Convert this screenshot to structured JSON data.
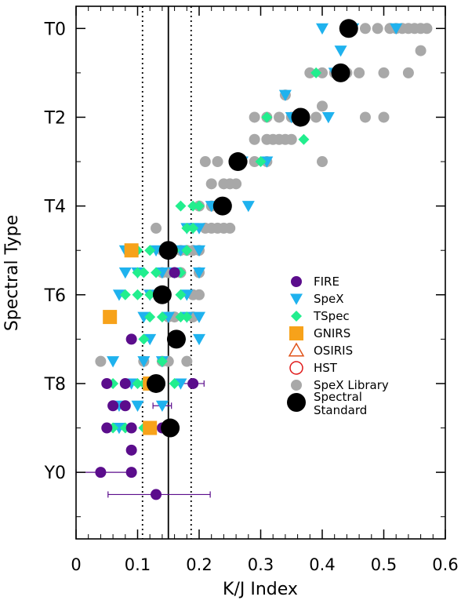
{
  "chart_data": {
    "type": "scatter",
    "title": "",
    "xlabel": "K/J Index",
    "ylabel": "Spectral Type",
    "xlim": [
      0,
      0.6
    ],
    "ylim_spectral_index": [
      -0.5,
      11.5
    ],
    "y_axis_direction": "T0 at top, increasing downward",
    "x_ticks": [
      {
        "v": 0,
        "label": "0"
      },
      {
        "v": 0.1,
        "label": "0.1"
      },
      {
        "v": 0.2,
        "label": "0.2"
      },
      {
        "v": 0.3,
        "label": "0.3"
      },
      {
        "v": 0.4,
        "label": "0.4"
      },
      {
        "v": 0.5,
        "label": "0.5"
      },
      {
        "v": 0.6,
        "label": "0.6"
      }
    ],
    "y_ticks": [
      {
        "v": 0,
        "label": "T0"
      },
      {
        "v": 2,
        "label": "T2"
      },
      {
        "v": 4,
        "label": "T4"
      },
      {
        "v": 6,
        "label": "T6"
      },
      {
        "v": 8,
        "label": "T8"
      },
      {
        "v": 10,
        "label": "Y0"
      }
    ],
    "grid": false,
    "reference_lines": [
      {
        "x": 0.15,
        "style": "solid"
      },
      {
        "x": 0.108,
        "style": "dotted"
      },
      {
        "x": 0.187,
        "style": "dotted"
      }
    ],
    "legend_position": "right-center",
    "legend": [
      {
        "key": "fire",
        "label": "FIRE"
      },
      {
        "key": "spex",
        "label": "SpeX"
      },
      {
        "key": "tspec",
        "label": "TSpec"
      },
      {
        "key": "gnirs",
        "label": "GNIRS"
      },
      {
        "key": "osiris",
        "label": "OSIRIS"
      },
      {
        "key": "hst",
        "label": "HST"
      },
      {
        "key": "lib",
        "label": "SpeX Library"
      },
      {
        "key": "std",
        "label": "Spectral Standard",
        "lines": [
          "Spectral",
          "Standard"
        ]
      }
    ],
    "colors": {
      "fire": "#5b0d8c",
      "spex": "#1fb2ee",
      "tspec": "#22ee8e",
      "gnirs": "#f7a21a",
      "osiris": "#e0531a",
      "hst": "#e01818",
      "lib": "#a8a8a8",
      "std": "#000000",
      "errorbar": "#5b0d8c"
    },
    "series": [
      {
        "key": "lib",
        "points": [
          [
            0.47,
            0
          ],
          [
            0.49,
            0
          ],
          [
            0.51,
            0
          ],
          [
            0.52,
            0
          ],
          [
            0.53,
            0
          ],
          [
            0.54,
            0
          ],
          [
            0.55,
            0
          ],
          [
            0.56,
            0
          ],
          [
            0.57,
            0
          ],
          [
            0.56,
            0.5
          ],
          [
            0.38,
            1
          ],
          [
            0.4,
            1
          ],
          [
            0.42,
            1
          ],
          [
            0.44,
            1
          ],
          [
            0.46,
            1
          ],
          [
            0.5,
            1
          ],
          [
            0.54,
            1
          ],
          [
            0.34,
            1.5
          ],
          [
            0.4,
            1.75
          ],
          [
            0.29,
            2
          ],
          [
            0.31,
            2
          ],
          [
            0.33,
            2
          ],
          [
            0.35,
            2
          ],
          [
            0.37,
            2
          ],
          [
            0.39,
            2
          ],
          [
            0.47,
            2
          ],
          [
            0.5,
            2
          ],
          [
            0.29,
            2.5
          ],
          [
            0.31,
            2.5
          ],
          [
            0.32,
            2.5
          ],
          [
            0.33,
            2.5
          ],
          [
            0.34,
            2.5
          ],
          [
            0.35,
            2.5
          ],
          [
            0.21,
            3
          ],
          [
            0.23,
            3
          ],
          [
            0.27,
            3
          ],
          [
            0.29,
            3
          ],
          [
            0.31,
            3
          ],
          [
            0.4,
            3
          ],
          [
            0.22,
            3.5
          ],
          [
            0.24,
            3.5
          ],
          [
            0.25,
            3.5
          ],
          [
            0.26,
            3.5
          ],
          [
            0.2,
            4
          ],
          [
            0.22,
            4
          ],
          [
            0.24,
            4
          ],
          [
            0.13,
            4.5
          ],
          [
            0.21,
            4.5
          ],
          [
            0.22,
            4.5
          ],
          [
            0.23,
            4.5
          ],
          [
            0.24,
            4.5
          ],
          [
            0.25,
            4.5
          ],
          [
            0.14,
            5
          ],
          [
            0.17,
            5
          ],
          [
            0.18,
            5
          ],
          [
            0.19,
            5
          ],
          [
            0.2,
            5
          ],
          [
            0.14,
            5.5
          ],
          [
            0.15,
            5.5
          ],
          [
            0.17,
            5.5
          ],
          [
            0.2,
            5.5
          ],
          [
            0.19,
            6
          ],
          [
            0.2,
            6
          ],
          [
            0.15,
            6.5
          ],
          [
            0.16,
            6.5
          ],
          [
            0.19,
            6.5
          ],
          [
            0.16,
            7
          ],
          [
            0.04,
            7.5
          ],
          [
            0.11,
            7.5
          ],
          [
            0.14,
            7.5
          ],
          [
            0.15,
            7.5
          ],
          [
            0.18,
            7.5
          ]
        ]
      },
      {
        "key": "spex",
        "points": [
          [
            0.4,
            0
          ],
          [
            0.45,
            0
          ],
          [
            0.52,
            0
          ],
          [
            0.43,
            0.5
          ],
          [
            0.42,
            1
          ],
          [
            0.34,
            1.5
          ],
          [
            0.35,
            2
          ],
          [
            0.41,
            2
          ],
          [
            0.27,
            3
          ],
          [
            0.31,
            3
          ],
          [
            0.22,
            4
          ],
          [
            0.28,
            4
          ],
          [
            0.18,
            4.5
          ],
          [
            0.19,
            4.5
          ],
          [
            0.2,
            4.5
          ],
          [
            0.08,
            5
          ],
          [
            0.13,
            5
          ],
          [
            0.15,
            5
          ],
          [
            0.17,
            5
          ],
          [
            0.2,
            5
          ],
          [
            0.08,
            5.5
          ],
          [
            0.1,
            5.5
          ],
          [
            0.14,
            5.5
          ],
          [
            0.16,
            5.5
          ],
          [
            0.2,
            5.5
          ],
          [
            0.07,
            6
          ],
          [
            0.12,
            6
          ],
          [
            0.14,
            6
          ],
          [
            0.18,
            6
          ],
          [
            0.11,
            6.5
          ],
          [
            0.15,
            6.5
          ],
          [
            0.18,
            6.5
          ],
          [
            0.2,
            6.5
          ],
          [
            0.12,
            7
          ],
          [
            0.2,
            7
          ],
          [
            0.06,
            7.5
          ],
          [
            0.11,
            7.5
          ],
          [
            0.14,
            7.5
          ],
          [
            0.09,
            8
          ],
          [
            0.13,
            8
          ],
          [
            0.17,
            8
          ],
          [
            0.07,
            8.5
          ],
          [
            0.1,
            8.5
          ],
          [
            0.14,
            8.5
          ],
          [
            0.07,
            9
          ]
        ]
      },
      {
        "key": "tspec",
        "points": [
          [
            0.39,
            1
          ],
          [
            0.31,
            2
          ],
          [
            0.37,
            2.5
          ],
          [
            0.3,
            3
          ],
          [
            0.17,
            4
          ],
          [
            0.19,
            4
          ],
          [
            0.2,
            4
          ],
          [
            0.18,
            4.5
          ],
          [
            0.19,
            4.5
          ],
          [
            0.1,
            5
          ],
          [
            0.12,
            5
          ],
          [
            0.16,
            5
          ],
          [
            0.18,
            5
          ],
          [
            0.1,
            5.5
          ],
          [
            0.11,
            5.5
          ],
          [
            0.13,
            5.5
          ],
          [
            0.17,
            5.5
          ],
          [
            0.08,
            6
          ],
          [
            0.1,
            6
          ],
          [
            0.12,
            6
          ],
          [
            0.17,
            6
          ],
          [
            0.12,
            6.5
          ],
          [
            0.14,
            6.5
          ],
          [
            0.17,
            6.5
          ],
          [
            0.18,
            6.5
          ],
          [
            0.11,
            7
          ],
          [
            0.17,
            7
          ],
          [
            0.14,
            7.5
          ],
          [
            0.06,
            8
          ],
          [
            0.1,
            8
          ],
          [
            0.11,
            8
          ],
          [
            0.16,
            8
          ],
          [
            0.06,
            9
          ],
          [
            0.08,
            9
          ],
          [
            0.11,
            9
          ]
        ]
      },
      {
        "key": "fire",
        "points": [
          [
            0.16,
            5.5
          ],
          [
            0.09,
            7
          ],
          [
            0.05,
            8
          ],
          [
            0.08,
            8
          ],
          [
            0.19,
            8
          ],
          [
            0.06,
            8.5
          ],
          [
            0.08,
            8.5
          ],
          [
            0.05,
            9
          ],
          [
            0.09,
            9
          ],
          [
            0.14,
            9
          ],
          [
            0.09,
            9.5
          ],
          [
            0.04,
            10
          ],
          [
            0.09,
            10
          ],
          [
            0.13,
            10.5
          ]
        ]
      },
      {
        "key": "gnirs",
        "points": [
          [
            0.09,
            5
          ],
          [
            0.055,
            6.5
          ],
          [
            0.12,
            8
          ],
          [
            0.12,
            9
          ]
        ]
      },
      {
        "key": "std",
        "points": [
          [
            0.443,
            0
          ],
          [
            0.43,
            1
          ],
          [
            0.365,
            2
          ],
          [
            0.263,
            3
          ],
          [
            0.238,
            4
          ],
          [
            0.15,
            5
          ],
          [
            0.14,
            6
          ],
          [
            0.163,
            7
          ],
          [
            0.13,
            8
          ],
          [
            0.153,
            9
          ]
        ]
      }
    ],
    "error_bars": [
      {
        "y": 10,
        "x": 0.04,
        "xmin": 0.0,
        "xmax": 0.09
      },
      {
        "y": 10.5,
        "x": 0.13,
        "xmin": 0.052,
        "xmax": 0.218
      },
      {
        "y": 8,
        "x": 0.19,
        "xmin": 0.16,
        "xmax": 0.208
      },
      {
        "y": 8.5,
        "x": 0.14,
        "xmin": 0.125,
        "xmax": 0.155
      },
      {
        "y": 6.5,
        "x": 0.15,
        "xmin": 0.138,
        "xmax": 0.162
      }
    ]
  }
}
